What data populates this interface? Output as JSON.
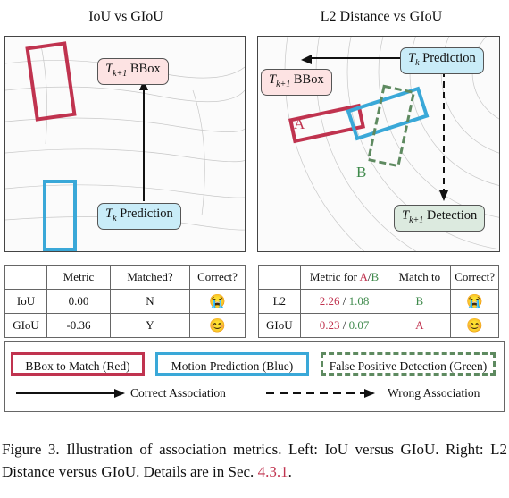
{
  "left_panel": {
    "title": "IoU vs GIoU",
    "target_label_prefix": "T",
    "target_label_sub": "k+1",
    "target_label_suffix": " BBox",
    "pred_label_prefix": "T",
    "pred_label_sub": "k",
    "pred_label_suffix": " Prediction"
  },
  "right_panel": {
    "title": "L2 Distance vs GIoU",
    "pred_label_prefix": "T",
    "pred_label_sub": "k",
    "pred_label_suffix": " Prediction",
    "target_label_prefix": "T",
    "target_label_sub": "k+1",
    "target_label_suffix": " BBox",
    "detection_label_prefix": "T",
    "detection_label_sub": "k+1",
    "detection_label_suffix": " Detection",
    "box_a": "A",
    "box_b": "B"
  },
  "left_table": {
    "headers": [
      "",
      "Metric",
      "Matched?",
      "Correct?"
    ],
    "rows": [
      {
        "name": "IoU",
        "metric": "0.00",
        "matched": "N",
        "correct": "😭"
      },
      {
        "name": "GIoU",
        "metric": "-0.36",
        "matched": "Y",
        "correct": "😊"
      }
    ]
  },
  "right_table": {
    "headers": {
      "blank": "",
      "metric_prefix": "Metric for ",
      "a": "A",
      "slash": "/",
      "b": "B",
      "match": "Match to",
      "correct": "Correct?"
    },
    "rows": [
      {
        "name": "L2",
        "a_val": "2.26",
        "sep": " / ",
        "b_val": "1.08",
        "match": "B",
        "match_color": "green",
        "correct": "😭"
      },
      {
        "name": "GIoU",
        "a_val": "0.23",
        "sep": " / ",
        "b_val": "0.07",
        "match": "A",
        "match_color": "red",
        "correct": "😊"
      }
    ]
  },
  "legend": {
    "red_box": "BBox to Match (Red)",
    "blue_box": "Motion Prediction (Blue)",
    "green_box": "False Positive Detection (Green)",
    "solid_arrow": "Correct Association",
    "dashed_arrow": "Wrong Association"
  },
  "caption": {
    "text": "Figure 3.  Illustration of association metrics.  Left:  IoU versus GIoU. Right: L2 Distance versus GIoU. Details are in Sec. ",
    "ref": "4.3.1",
    "end": "."
  },
  "colors": {
    "red": "#c0334f",
    "blue": "#3aa8d8",
    "green": "#5e8a60"
  }
}
